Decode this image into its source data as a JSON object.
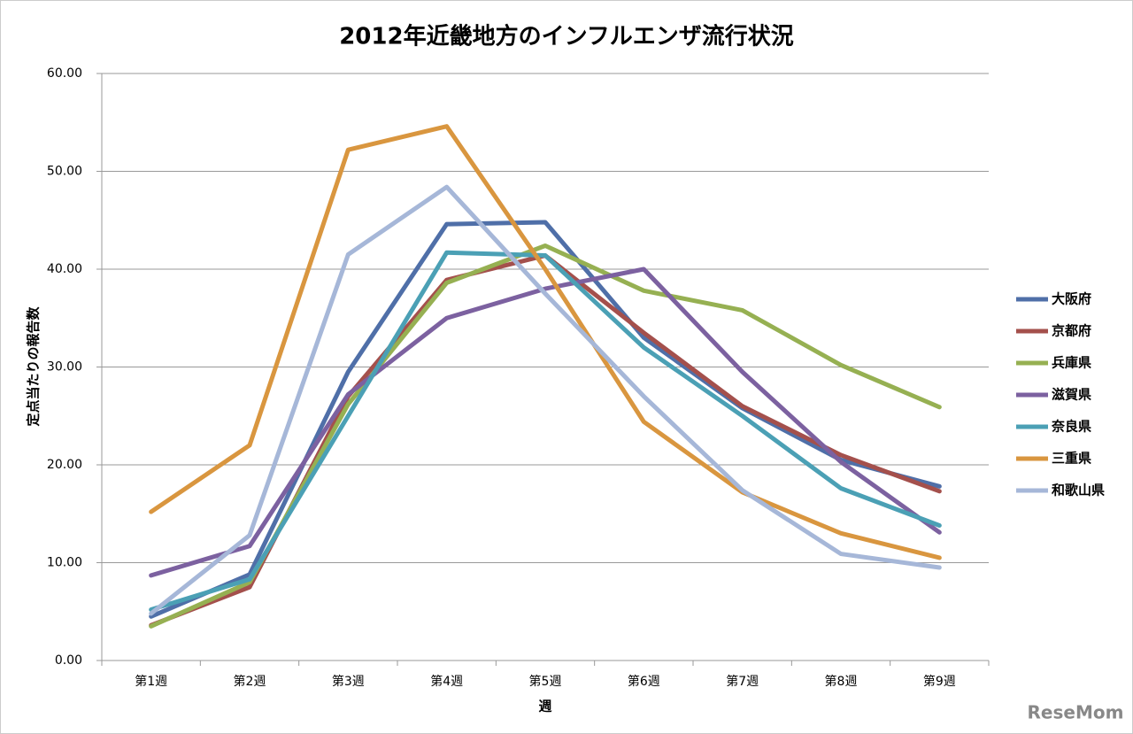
{
  "chart_data": {
    "type": "line",
    "title": "2012年近畿地方のインフルエンザ流行状況",
    "x_label": "週",
    "y_label": "定点当たりの報告数",
    "categories": [
      "第1週",
      "第2週",
      "第3週",
      "第4週",
      "第5週",
      "第6週",
      "第7週",
      "第8週",
      "第9週"
    ],
    "series": [
      {
        "name": "大阪府",
        "color": "#4f6fa8",
        "values": [
          4.5,
          8.8,
          29.5,
          44.6,
          44.8,
          33.0,
          25.8,
          20.5,
          17.8
        ]
      },
      {
        "name": "京都府",
        "color": "#a4504c",
        "values": [
          3.6,
          7.5,
          27.0,
          38.9,
          41.4,
          33.5,
          26.0,
          21.0,
          17.3
        ]
      },
      {
        "name": "兵庫県",
        "color": "#96b052",
        "values": [
          3.5,
          8.0,
          26.2,
          38.6,
          42.4,
          37.8,
          35.8,
          30.2,
          25.9
        ]
      },
      {
        "name": "滋賀県",
        "color": "#7c61a0",
        "values": [
          8.7,
          11.7,
          27.2,
          35.0,
          38.0,
          40.0,
          29.5,
          20.3,
          13.1
        ]
      },
      {
        "name": "奈良県",
        "color": "#4ba0b5",
        "values": [
          5.2,
          8.3,
          25.0,
          41.7,
          41.4,
          32.0,
          25.0,
          17.6,
          13.8
        ]
      },
      {
        "name": "三重県",
        "color": "#d9963f",
        "values": [
          15.2,
          22.0,
          52.2,
          54.6,
          40.0,
          24.4,
          17.2,
          13.0,
          10.5
        ]
      },
      {
        "name": "和歌山県",
        "color": "#a6b7d8",
        "values": [
          4.8,
          12.8,
          41.5,
          48.4,
          37.5,
          27.0,
          17.4,
          10.9,
          9.5
        ]
      }
    ],
    "ylim": [
      0,
      60
    ],
    "yticks": [
      {
        "value": 0,
        "label": "0.00"
      },
      {
        "value": 10,
        "label": "10.00"
      },
      {
        "value": 20,
        "label": "20.00"
      },
      {
        "value": 30,
        "label": "30.00"
      },
      {
        "value": 40,
        "label": "40.00"
      },
      {
        "value": 50,
        "label": "50.00"
      },
      {
        "value": 60,
        "label": "60.00"
      }
    ],
    "grid": true,
    "legend": "right"
  },
  "watermark": "ReseMom"
}
